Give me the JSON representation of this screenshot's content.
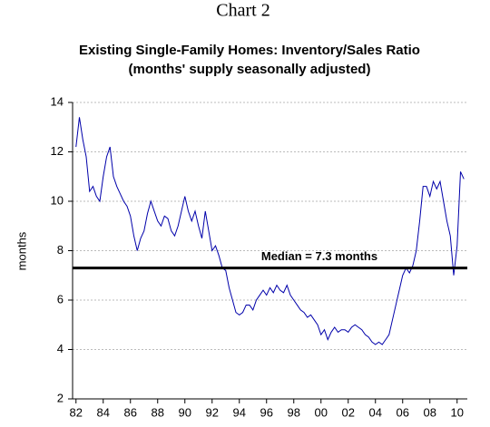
{
  "chart_data": {
    "type": "line",
    "page_title": "Chart 2",
    "title": "Existing Single-Family Homes: Inventory/Sales Ratio",
    "subtitle": "(months' supply seasonally adjusted)",
    "y_label": "months",
    "annotation": "Median = 7.3 months",
    "median": 7.3,
    "color": "#0000aa",
    "grid": true,
    "x": [
      1982,
      1982.25,
      1982.5,
      1982.75,
      1983,
      1983.25,
      1983.5,
      1983.75,
      1984,
      1984.25,
      1984.5,
      1984.75,
      1985,
      1985.25,
      1985.5,
      1985.75,
      1986,
      1986.25,
      1986.5,
      1986.75,
      1987,
      1987.25,
      1987.5,
      1987.75,
      1988,
      1988.25,
      1988.5,
      1988.75,
      1989,
      1989.25,
      1989.5,
      1989.75,
      1990,
      1990.25,
      1990.5,
      1990.75,
      1991,
      1991.25,
      1991.5,
      1991.75,
      1992,
      1992.25,
      1992.5,
      1992.75,
      1993,
      1993.25,
      1993.5,
      1993.75,
      1994,
      1994.25,
      1994.5,
      1994.75,
      1995,
      1995.25,
      1995.5,
      1995.75,
      1996,
      1996.25,
      1996.5,
      1996.75,
      1997,
      1997.25,
      1997.5,
      1997.75,
      1998,
      1998.25,
      1998.5,
      1998.75,
      1999,
      1999.25,
      1999.5,
      1999.75,
      2000,
      2000.25,
      2000.5,
      2000.75,
      2001,
      2001.25,
      2001.5,
      2001.75,
      2002,
      2002.25,
      2002.5,
      2002.75,
      2003,
      2003.25,
      2003.5,
      2003.75,
      2004,
      2004.25,
      2004.5,
      2004.75,
      2005,
      2005.25,
      2005.5,
      2005.75,
      2006,
      2006.25,
      2006.5,
      2006.75,
      2007,
      2007.25,
      2007.5,
      2007.75,
      2008,
      2008.25,
      2008.5,
      2008.75,
      2009,
      2009.25,
      2009.5,
      2009.75,
      2010,
      2010.25,
      2010.5
    ],
    "values": [
      12.2,
      13.4,
      12.5,
      11.8,
      10.4,
      10.6,
      10.2,
      10.0,
      11.0,
      11.8,
      12.2,
      11.0,
      10.6,
      10.3,
      10.0,
      9.8,
      9.4,
      8.6,
      8.0,
      8.5,
      8.8,
      9.5,
      10.0,
      9.6,
      9.2,
      9.0,
      9.4,
      9.3,
      8.8,
      8.6,
      9.0,
      9.6,
      10.2,
      9.6,
      9.2,
      9.6,
      9.0,
      8.5,
      9.6,
      8.8,
      8.0,
      8.2,
      7.8,
      7.3,
      7.2,
      6.5,
      6.0,
      5.5,
      5.4,
      5.5,
      5.8,
      5.8,
      5.6,
      6.0,
      6.2,
      6.4,
      6.2,
      6.5,
      6.3,
      6.6,
      6.4,
      6.3,
      6.6,
      6.2,
      6.0,
      5.8,
      5.6,
      5.5,
      5.3,
      5.4,
      5.2,
      5.0,
      4.6,
      4.8,
      4.4,
      4.7,
      4.9,
      4.7,
      4.8,
      4.8,
      4.7,
      4.9,
      5.0,
      4.9,
      4.8,
      4.6,
      4.5,
      4.3,
      4.2,
      4.3,
      4.2,
      4.4,
      4.6,
      5.2,
      5.8,
      6.4,
      7.0,
      7.3,
      7.1,
      7.4,
      8.0,
      9.2,
      10.6,
      10.6,
      10.2,
      10.8,
      10.5,
      10.8,
      10.0,
      9.2,
      8.6,
      7.0,
      8.2,
      11.2,
      10.9
    ],
    "xlim": [
      1981.75,
      2010.75
    ],
    "xticks": [
      {
        "value": 1982,
        "label": "82"
      },
      {
        "value": 1984,
        "label": "84"
      },
      {
        "value": 1986,
        "label": "86"
      },
      {
        "value": 1988,
        "label": "88"
      },
      {
        "value": 1990,
        "label": "90"
      },
      {
        "value": 1992,
        "label": "92"
      },
      {
        "value": 1994,
        "label": "94"
      },
      {
        "value": 1996,
        "label": "96"
      },
      {
        "value": 1998,
        "label": "98"
      },
      {
        "value": 2000,
        "label": "00"
      },
      {
        "value": 2002,
        "label": "02"
      },
      {
        "value": 2004,
        "label": "04"
      },
      {
        "value": 2006,
        "label": "06"
      },
      {
        "value": 2008,
        "label": "08"
      },
      {
        "value": 2010,
        "label": "10"
      }
    ],
    "ylim": [
      2,
      14
    ],
    "yticks": [
      2,
      4,
      6,
      8,
      10,
      12,
      14
    ]
  }
}
